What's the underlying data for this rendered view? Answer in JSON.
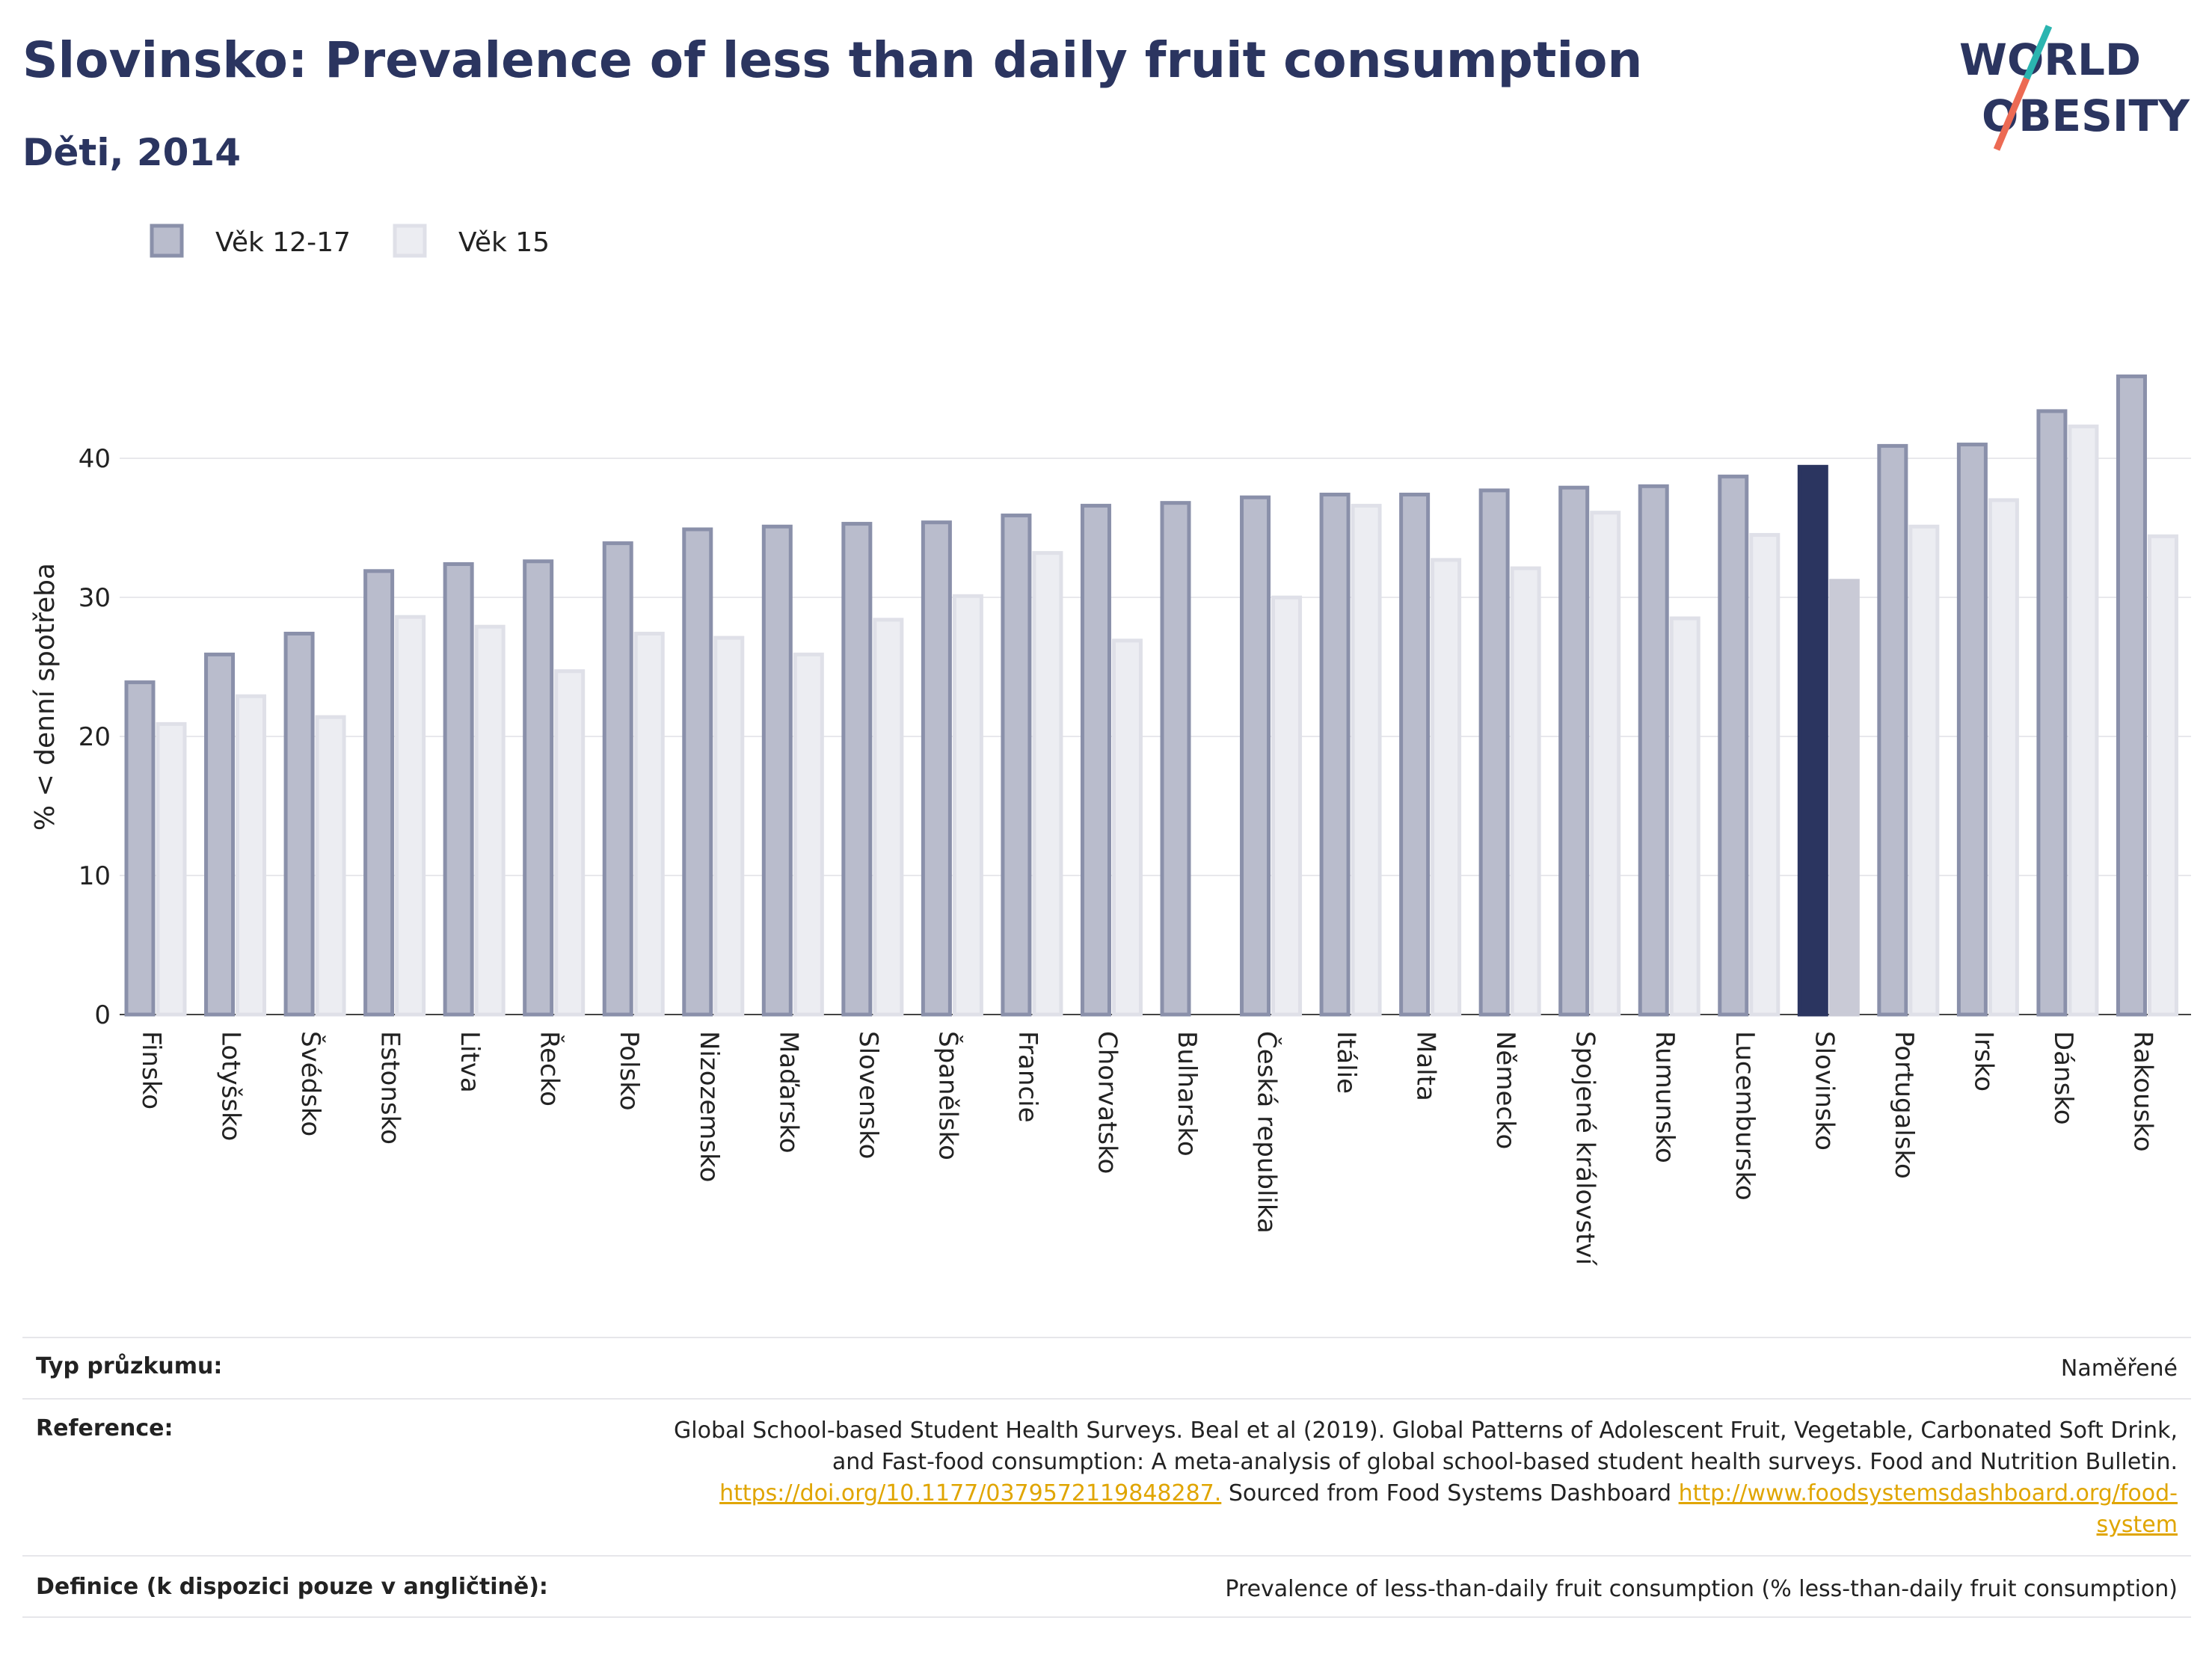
{
  "header": {
    "title": "Slovinsko: Prevalence of less than daily fruit consumption",
    "subtitle": "Děti, 2014",
    "logo_line1": "WORLD",
    "logo_line2": "OBESITY"
  },
  "colors": {
    "series1": "#b9bccc",
    "series1_stroke": "#8a90aa",
    "series2": "#ecedf2",
    "series2_stroke": "#dfe0e8",
    "highlight": "#2b3560",
    "highlight2": "#c9cad6",
    "title": "#2b3560",
    "logo_slash1": "#2bb5b0",
    "logo_slash2": "#ec6a53"
  },
  "chart_data": {
    "type": "bar",
    "ylabel": "% < denní spotřeba",
    "ylim": [
      0,
      48
    ],
    "yticks": [
      0,
      10,
      20,
      30,
      40
    ],
    "grid": true,
    "legend_position": "top-left",
    "highlight_category": "Slovinsko",
    "categories": [
      "Finsko",
      "Lotyšsko",
      "Švédsko",
      "Estonsko",
      "Litva",
      "Řecko",
      "Polsko",
      "Nizozemsko",
      "Maďarsko",
      "Slovensko",
      "Španělsko",
      "Francie",
      "Chorvatsko",
      "Bulharsko",
      "Česká republika",
      "Itálie",
      "Malta",
      "Německo",
      "Spojené království",
      "Rumunsko",
      "Lucembursko",
      "Slovinsko",
      "Portugalsko",
      "Irsko",
      "Dánsko",
      "Rakousko"
    ],
    "series": [
      {
        "name": "Věk 12-17",
        "values": [
          24.0,
          26.0,
          27.5,
          32.0,
          32.5,
          32.7,
          34.0,
          35.0,
          35.2,
          35.4,
          35.5,
          36.0,
          36.7,
          36.9,
          37.3,
          37.5,
          37.5,
          37.8,
          38.0,
          38.1,
          38.8,
          39.5,
          41.0,
          41.1,
          43.5,
          46.0
        ]
      },
      {
        "name": "Věk 15",
        "values": [
          21.0,
          23.0,
          21.5,
          28.7,
          28.0,
          24.8,
          27.5,
          27.2,
          26.0,
          28.5,
          30.2,
          33.3,
          27.0,
          null,
          30.1,
          36.7,
          32.8,
          32.2,
          36.2,
          28.6,
          34.6,
          31.3,
          35.2,
          37.1,
          42.4,
          34.5
        ]
      }
    ]
  },
  "footer": {
    "survey_label": "Typ průzkumu:",
    "survey_value": "Naměřené",
    "reference_label": "Reference:",
    "reference_line1": "Global School-based Student Health Surveys. Beal et al (2019). Global Patterns of Adolescent Fruit, Vegetable, Carbonated Soft Drink,",
    "reference_line2": "and Fast-food consumption: A meta-analysis of global school-based student health surveys. Food and Nutrition Bulletin.",
    "reference_doi": "https://doi.org/10.1177/0379572119848287.",
    "reference_sourced": " Sourced from Food Systems Dashboard ",
    "reference_fsd1": "http://www.foodsystemsdashboard.org/food-",
    "reference_fsd2": "system",
    "definition_label": "Definice (k dispozici pouze v angličtině):",
    "definition_value": "Prevalence of less-than-daily fruit consumption (% less-than-daily fruit consumption)"
  }
}
